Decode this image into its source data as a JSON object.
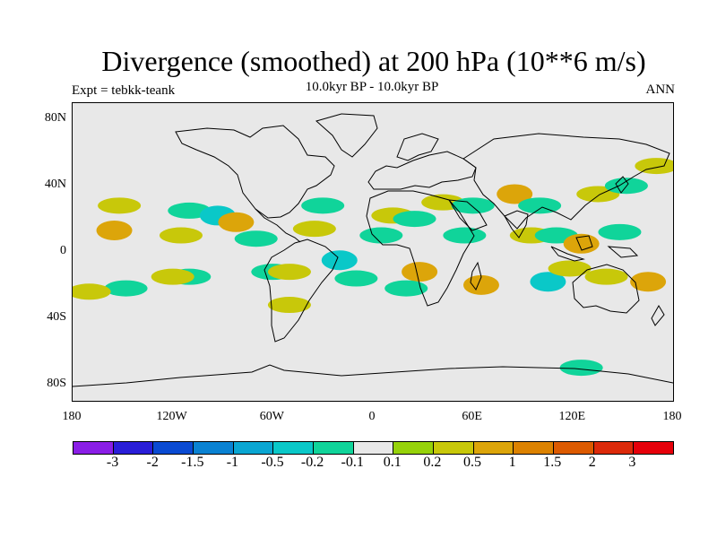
{
  "header": {
    "title": "Divergence (smoothed) at 200 hPa (10**6 m/s)",
    "subtitle": "10.0kyr BP - 10.0kyr BP",
    "left_label": "Expt = tebkk-teank",
    "right_label": "ANN"
  },
  "axes": {
    "lat_ticks": [
      {
        "label": "80N",
        "value": 80
      },
      {
        "label": "40N",
        "value": 40
      },
      {
        "label": "0",
        "value": 0
      },
      {
        "label": "40S",
        "value": -40
      },
      {
        "label": "80S",
        "value": -80
      }
    ],
    "lon_ticks": [
      {
        "label": "180",
        "value": -180
      },
      {
        "label": "120W",
        "value": -120
      },
      {
        "label": "60W",
        "value": -60
      },
      {
        "label": "0",
        "value": 0
      },
      {
        "label": "60E",
        "value": 60
      },
      {
        "label": "120E",
        "value": 120
      },
      {
        "label": "180",
        "value": 180
      }
    ]
  },
  "colorbar": {
    "colors": [
      "#8a1ee6",
      "#2a1ed8",
      "#0a4ad2",
      "#0a82d2",
      "#0aa6d2",
      "#0ac8c8",
      "#10d49a",
      "#e8e8e8",
      "#96d20a",
      "#c8c80a",
      "#dca50a",
      "#dc8200",
      "#dc5a00",
      "#dc2a0a",
      "#e6000a"
    ],
    "labels": [
      "-3",
      "-2",
      "-1.5",
      "-1",
      "-0.5",
      "-0.2",
      "-0.1",
      "0.1",
      "0.2",
      "0.5",
      "1",
      "1.5",
      "2",
      "3"
    ]
  },
  "chart_data": {
    "type": "contour map",
    "projection": "cylindrical equidistant",
    "lon_range": [
      -180,
      180
    ],
    "lat_range": [
      -90,
      90
    ],
    "units": "10**6 m/s",
    "levels": [
      -3,
      -2,
      -1.5,
      -1,
      -0.5,
      -0.2,
      -0.1,
      0.1,
      0.2,
      0.5,
      1,
      1.5,
      2,
      3
    ],
    "fields": [
      {
        "lon": -155,
        "lat": 13,
        "value": 0.5
      },
      {
        "lon": -152,
        "lat": 28,
        "value": 0.2
      },
      {
        "lon": -110,
        "lat": 25,
        "value": -0.2
      },
      {
        "lon": -115,
        "lat": 10,
        "value": 0.2
      },
      {
        "lon": -93,
        "lat": 22,
        "value": -0.5
      },
      {
        "lon": -82,
        "lat": 18,
        "value": 0.5
      },
      {
        "lon": -70,
        "lat": 8,
        "value": -0.2
      },
      {
        "lon": -110,
        "lat": -15,
        "value": -0.2
      },
      {
        "lon": -120,
        "lat": -15,
        "value": 0.2
      },
      {
        "lon": -148,
        "lat": -22,
        "value": -0.2
      },
      {
        "lon": -170,
        "lat": -24,
        "value": 0.2
      },
      {
        "lon": -60,
        "lat": -12,
        "value": -0.2
      },
      {
        "lon": -50,
        "lat": -12,
        "value": 0.2
      },
      {
        "lon": -50,
        "lat": -32,
        "value": 0.2
      },
      {
        "lon": -30,
        "lat": 28,
        "value": -0.2
      },
      {
        "lon": -35,
        "lat": 14,
        "value": 0.2
      },
      {
        "lon": -20,
        "lat": -5,
        "value": -0.5
      },
      {
        "lon": -10,
        "lat": -16,
        "value": -0.2
      },
      {
        "lon": 5,
        "lat": 10,
        "value": -0.2
      },
      {
        "lon": 12,
        "lat": 22,
        "value": 0.2
      },
      {
        "lon": 25,
        "lat": 20,
        "value": -0.2
      },
      {
        "lon": 42,
        "lat": 30,
        "value": 0.2
      },
      {
        "lon": 60,
        "lat": 28,
        "value": -0.2
      },
      {
        "lon": 55,
        "lat": 10,
        "value": -0.2
      },
      {
        "lon": 28,
        "lat": -12,
        "value": 0.5
      },
      {
        "lon": 20,
        "lat": -22,
        "value": -0.2
      },
      {
        "lon": 65,
        "lat": -20,
        "value": 0.5
      },
      {
        "lon": 85,
        "lat": 35,
        "value": 0.5
      },
      {
        "lon": 100,
        "lat": 28,
        "value": -0.2
      },
      {
        "lon": 95,
        "lat": 10,
        "value": 0.2
      },
      {
        "lon": 110,
        "lat": 10,
        "value": -0.2
      },
      {
        "lon": 125,
        "lat": 5,
        "value": 0.5
      },
      {
        "lon": 135,
        "lat": 35,
        "value": 0.2
      },
      {
        "lon": 152,
        "lat": 40,
        "value": -0.2
      },
      {
        "lon": 148,
        "lat": 12,
        "value": -0.2
      },
      {
        "lon": 105,
        "lat": -18,
        "value": -0.5
      },
      {
        "lon": 118,
        "lat": -10,
        "value": 0.2
      },
      {
        "lon": 140,
        "lat": -15,
        "value": 0.2
      },
      {
        "lon": 165,
        "lat": -18,
        "value": 0.5
      },
      {
        "lon": 170,
        "lat": 52,
        "value": 0.2
      },
      {
        "lon": 125,
        "lat": -70,
        "value": -0.2
      }
    ]
  }
}
